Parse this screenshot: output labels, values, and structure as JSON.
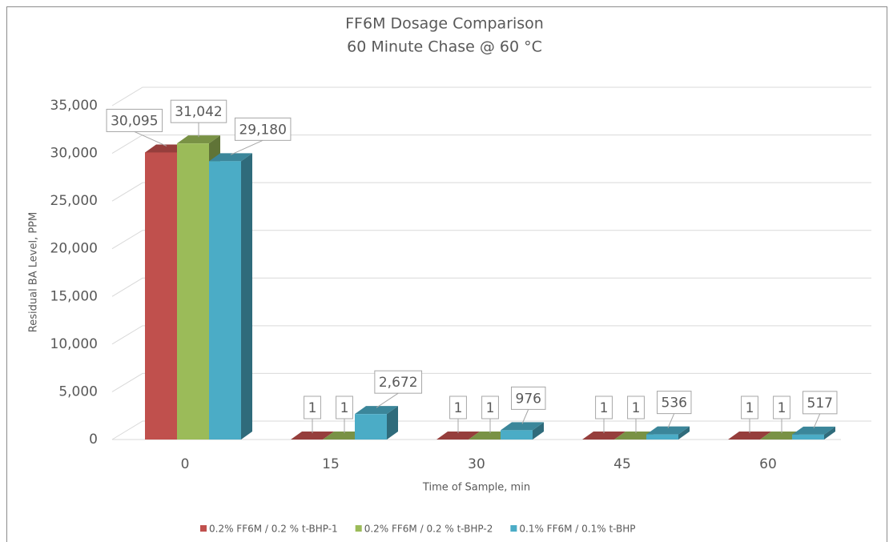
{
  "chart_data": {
    "type": "bar3d",
    "title": "FF6M Dosage Comparison",
    "subtitle": "60 Minute Chase @ 60 °C",
    "y_label": "Residual BA Level, PPM",
    "x_label": "Time of Sample, min",
    "categories": [
      "0",
      "15",
      "30",
      "45",
      "60"
    ],
    "series": [
      {
        "name": "0.2% FF6M / 0.2 % t-BHP-1",
        "color": "#c0504d",
        "values": [
          30095,
          1,
          1,
          1,
          1
        ],
        "value_labels": [
          "30,095",
          "1",
          "1",
          "1",
          "1"
        ]
      },
      {
        "name": "0.2% FF6M / 0.2 % t-BHP-2",
        "color": "#9bbb59",
        "values": [
          31042,
          1,
          1,
          1,
          1
        ],
        "value_labels": [
          "31,042",
          "1",
          "1",
          "1",
          "1"
        ]
      },
      {
        "name": "0.1% FF6M / 0.1% t-BHP",
        "color": "#4bacc6",
        "values": [
          29180,
          2672,
          976,
          536,
          517
        ],
        "value_labels": [
          "29,180",
          "2,672",
          "976",
          "536",
          "517"
        ]
      }
    ],
    "ylim": [
      0,
      35000
    ],
    "yticks": [
      0,
      {
        "value": 5000,
        "label": "5,000"
      },
      {
        "value": 10000,
        "label": "10,000"
      },
      {
        "value": 15000,
        "label": "15,000"
      },
      {
        "value": 20000,
        "label": "20,000"
      },
      {
        "value": 25000,
        "label": "25,000"
      },
      {
        "value": 30000,
        "label": "30,000"
      },
      {
        "value": 35000,
        "label": "35,000"
      }
    ],
    "grid": true,
    "legend": "bottom"
  }
}
